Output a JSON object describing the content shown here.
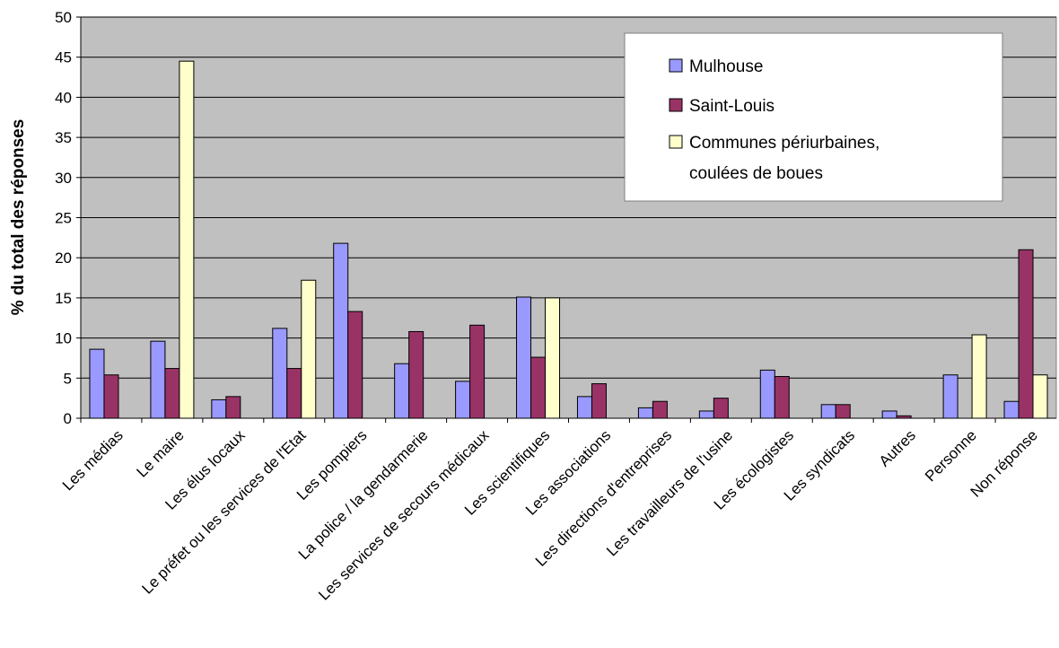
{
  "chart_data": {
    "type": "bar",
    "title": "",
    "xlabel": "",
    "ylabel": "% du total des réponses",
    "ylim": [
      0,
      50
    ],
    "yticks": [
      0,
      5,
      10,
      15,
      20,
      25,
      30,
      35,
      40,
      45,
      50
    ],
    "grid": true,
    "legend_position": "top-right",
    "plot_background": "#c0c0c0",
    "categories": [
      "Les médias",
      "Le maire",
      "Les élus locaux",
      "Le préfet ou les services de l'Etat",
      "Les pompiers",
      "La police / la gendarmerie",
      "Les services de secours médicaux",
      "Les scientifiques",
      "Les associations",
      "Les directions d'entreprises",
      "Les travailleurs de l'usine",
      "Les écologistes",
      "Les syndicats",
      "Autres",
      "Personne",
      "Non réponse"
    ],
    "series": [
      {
        "name": "Mulhouse",
        "color": "#9999ff",
        "values": [
          8.6,
          9.6,
          2.3,
          11.2,
          21.8,
          6.8,
          4.6,
          15.1,
          2.7,
          1.3,
          0.9,
          6.0,
          1.7,
          0.9,
          5.4,
          2.1
        ]
      },
      {
        "name": "Saint-Louis",
        "color": "#993366",
        "values": [
          5.4,
          6.2,
          2.7,
          6.2,
          13.3,
          10.8,
          11.6,
          7.6,
          4.3,
          2.1,
          2.5,
          5.2,
          1.7,
          0.3,
          0,
          21.0
        ]
      },
      {
        "name": "Communes périurbaines,\ncoulées de boues",
        "legend_lines": [
          "Communes périurbaines,",
          "coulées de boues"
        ],
        "color": "#ffffcc",
        "values": [
          0,
          44.5,
          0,
          17.2,
          0,
          0,
          0,
          15.0,
          0,
          0,
          0,
          0,
          0,
          0,
          10.4,
          5.4
        ]
      }
    ]
  }
}
